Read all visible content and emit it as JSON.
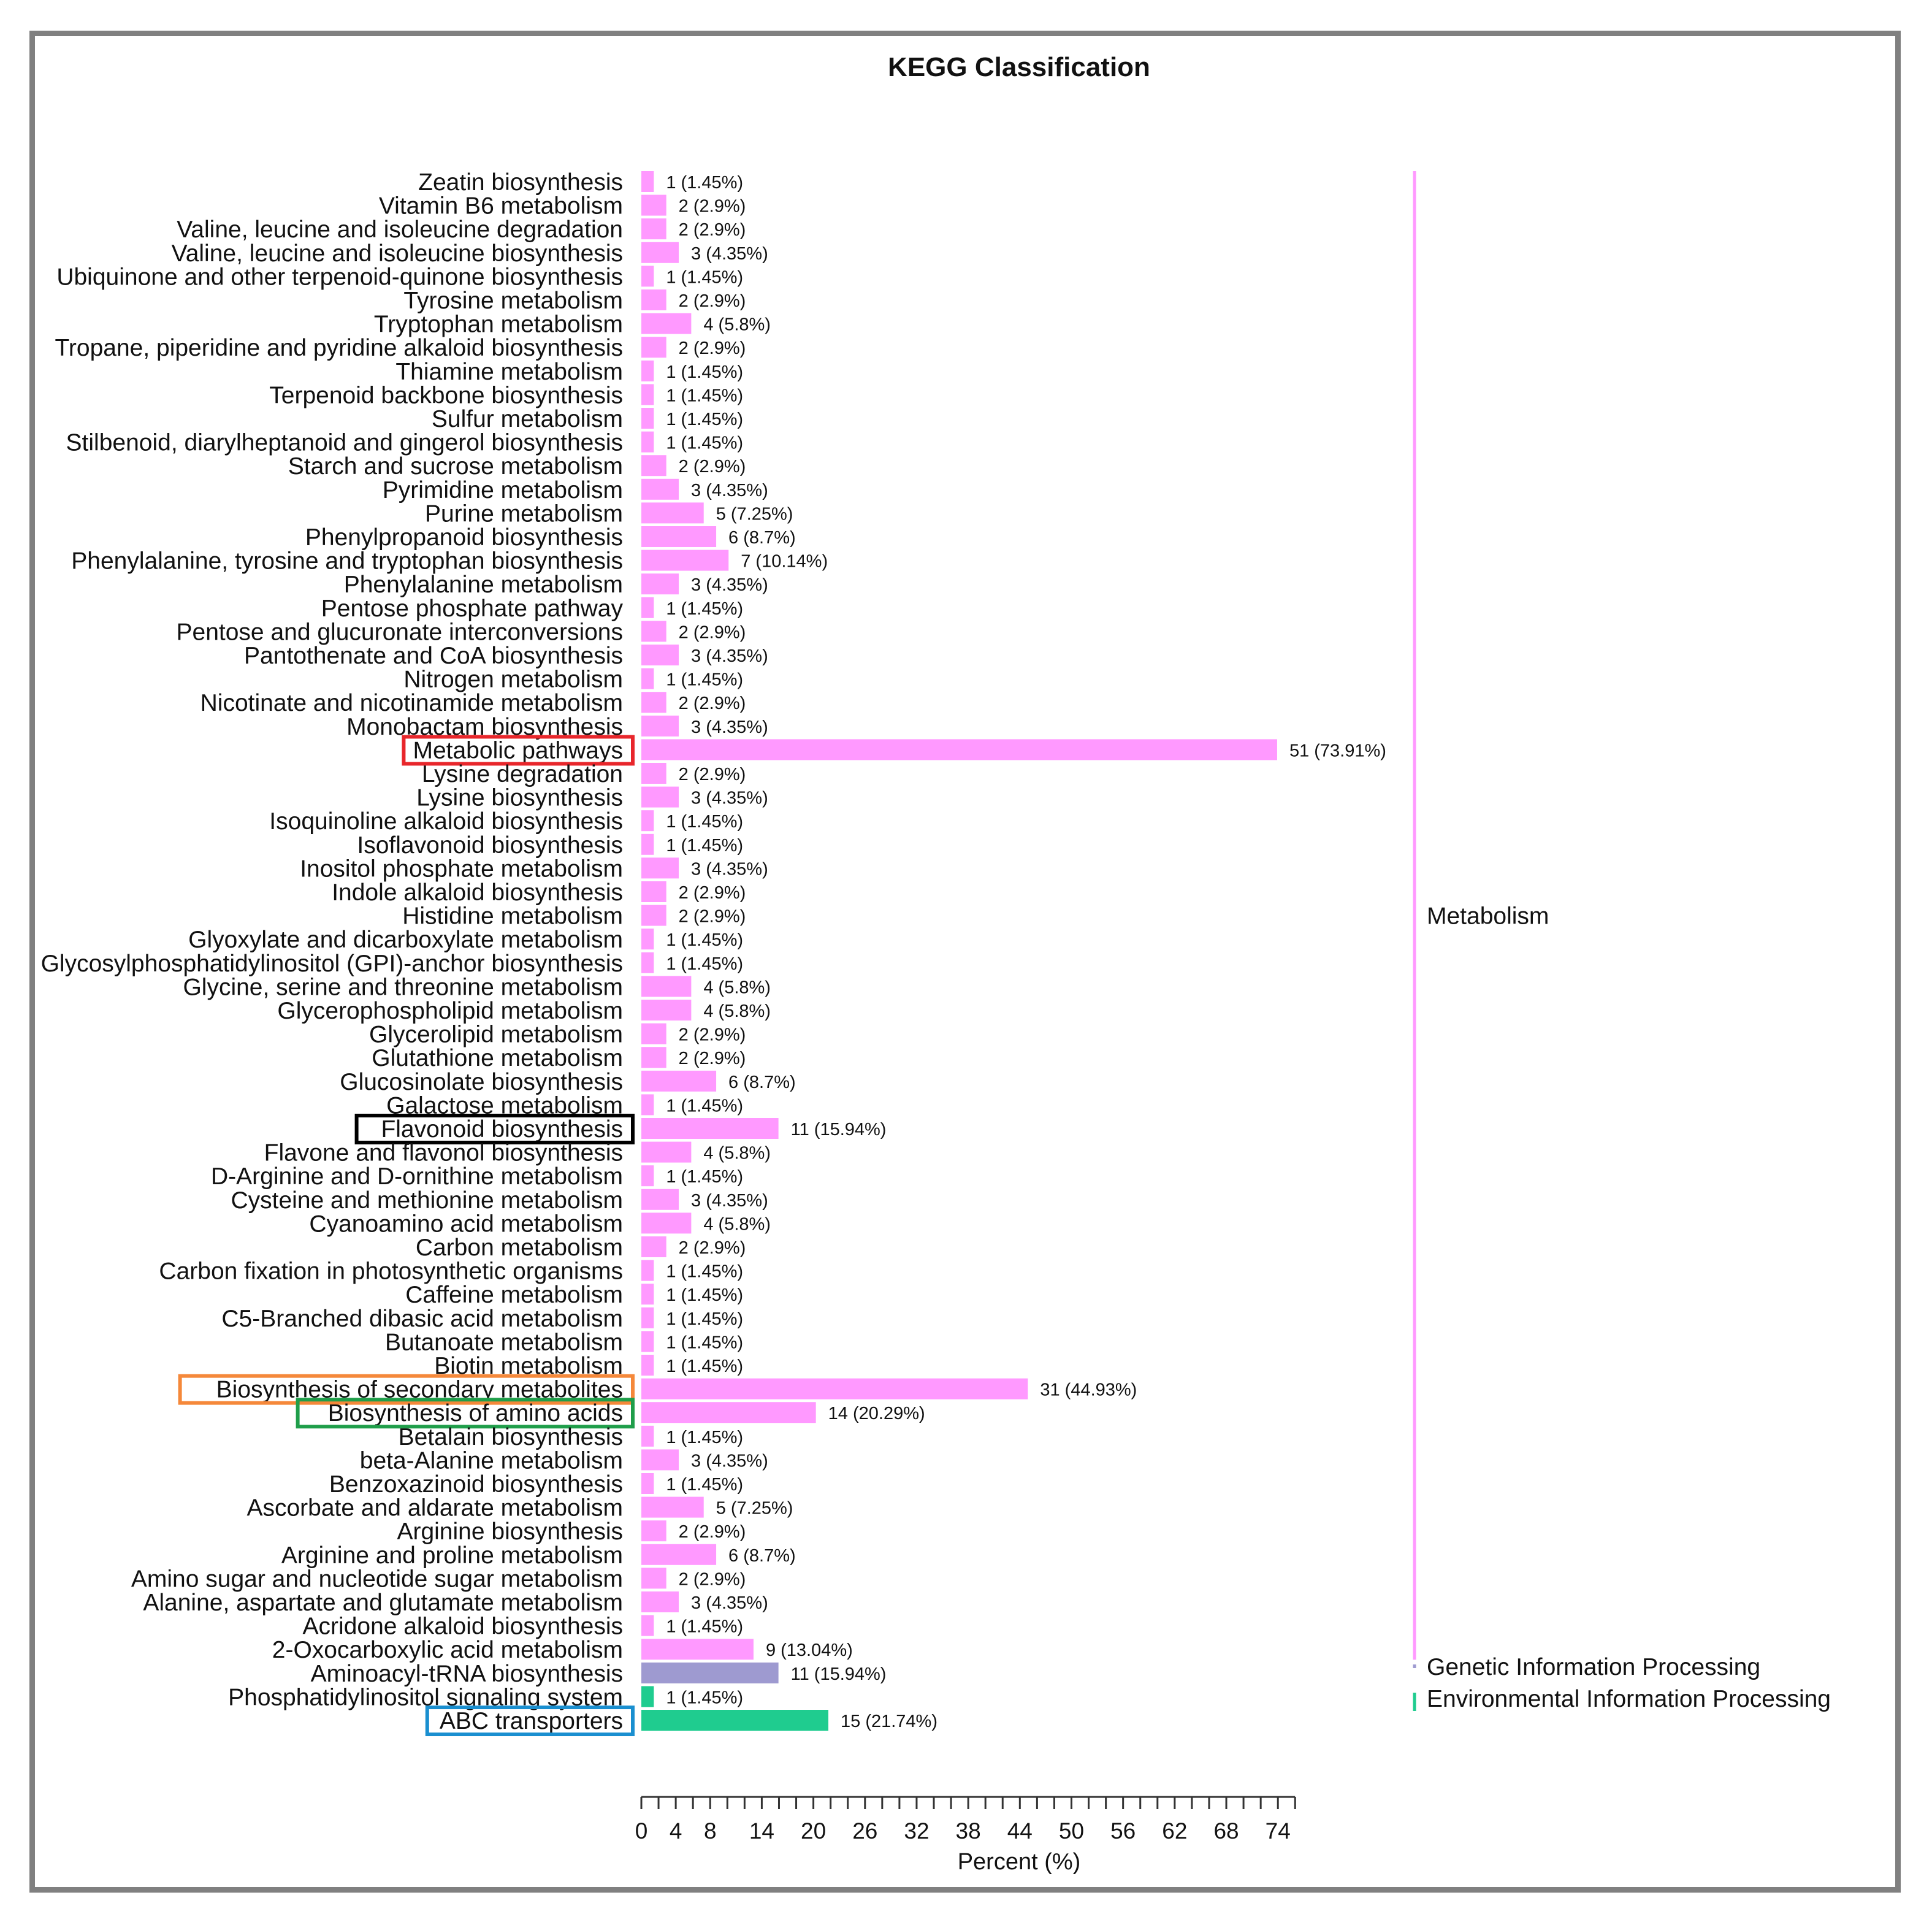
{
  "chart_data": {
    "type": "bar",
    "orientation": "horizontal",
    "title": "KEGG Classification",
    "xlabel": "Percent (%)",
    "ylabel": "",
    "xlim": [
      0,
      76
    ],
    "xticks": [
      0,
      4,
      8,
      14,
      20,
      26,
      32,
      38,
      44,
      50,
      56,
      62,
      68,
      74
    ],
    "grid": false,
    "categories": [
      {
        "label": "Zeatin biosynthesis",
        "count": 1,
        "percent": 1.45,
        "value_label": "1 (1.45%)",
        "class": "Metabolism"
      },
      {
        "label": "Vitamin B6 metabolism",
        "count": 2,
        "percent": 2.9,
        "value_label": "2 (2.9%)",
        "class": "Metabolism"
      },
      {
        "label": "Valine, leucine and isoleucine degradation",
        "count": 2,
        "percent": 2.9,
        "value_label": "2 (2.9%)",
        "class": "Metabolism"
      },
      {
        "label": "Valine, leucine and isoleucine biosynthesis",
        "count": 3,
        "percent": 4.35,
        "value_label": "3 (4.35%)",
        "class": "Metabolism"
      },
      {
        "label": "Ubiquinone and other terpenoid-quinone biosynthesis",
        "count": 1,
        "percent": 1.45,
        "value_label": "1 (1.45%)",
        "class": "Metabolism"
      },
      {
        "label": "Tyrosine metabolism",
        "count": 2,
        "percent": 2.9,
        "value_label": "2 (2.9%)",
        "class": "Metabolism"
      },
      {
        "label": "Tryptophan metabolism",
        "count": 4,
        "percent": 5.8,
        "value_label": "4 (5.8%)",
        "class": "Metabolism"
      },
      {
        "label": "Tropane, piperidine and pyridine alkaloid biosynthesis",
        "count": 2,
        "percent": 2.9,
        "value_label": "2 (2.9%)",
        "class": "Metabolism"
      },
      {
        "label": "Thiamine metabolism",
        "count": 1,
        "percent": 1.45,
        "value_label": "1 (1.45%)",
        "class": "Metabolism"
      },
      {
        "label": "Terpenoid backbone biosynthesis",
        "count": 1,
        "percent": 1.45,
        "value_label": "1 (1.45%)",
        "class": "Metabolism"
      },
      {
        "label": "Sulfur metabolism",
        "count": 1,
        "percent": 1.45,
        "value_label": "1 (1.45%)",
        "class": "Metabolism"
      },
      {
        "label": "Stilbenoid, diarylheptanoid and gingerol biosynthesis",
        "count": 1,
        "percent": 1.45,
        "value_label": "1 (1.45%)",
        "class": "Metabolism"
      },
      {
        "label": "Starch and sucrose metabolism",
        "count": 2,
        "percent": 2.9,
        "value_label": "2 (2.9%)",
        "class": "Metabolism"
      },
      {
        "label": "Pyrimidine metabolism",
        "count": 3,
        "percent": 4.35,
        "value_label": "3 (4.35%)",
        "class": "Metabolism"
      },
      {
        "label": "Purine metabolism",
        "count": 5,
        "percent": 7.25,
        "value_label": "5 (7.25%)",
        "class": "Metabolism"
      },
      {
        "label": "Phenylpropanoid biosynthesis",
        "count": 6,
        "percent": 8.7,
        "value_label": "6 (8.7%)",
        "class": "Metabolism"
      },
      {
        "label": "Phenylalanine, tyrosine and tryptophan biosynthesis",
        "count": 7,
        "percent": 10.14,
        "value_label": "7 (10.14%)",
        "class": "Metabolism"
      },
      {
        "label": "Phenylalanine metabolism",
        "count": 3,
        "percent": 4.35,
        "value_label": "3 (4.35%)",
        "class": "Metabolism"
      },
      {
        "label": "Pentose phosphate pathway",
        "count": 1,
        "percent": 1.45,
        "value_label": "1 (1.45%)",
        "class": "Metabolism"
      },
      {
        "label": "Pentose and glucuronate interconversions",
        "count": 2,
        "percent": 2.9,
        "value_label": "2 (2.9%)",
        "class": "Metabolism"
      },
      {
        "label": "Pantothenate and CoA biosynthesis",
        "count": 3,
        "percent": 4.35,
        "value_label": "3 (4.35%)",
        "class": "Metabolism"
      },
      {
        "label": "Nitrogen metabolism",
        "count": 1,
        "percent": 1.45,
        "value_label": "1 (1.45%)",
        "class": "Metabolism"
      },
      {
        "label": "Nicotinate and nicotinamide metabolism",
        "count": 2,
        "percent": 2.9,
        "value_label": "2 (2.9%)",
        "class": "Metabolism"
      },
      {
        "label": "Monobactam biosynthesis",
        "count": 3,
        "percent": 4.35,
        "value_label": "3 (4.35%)",
        "class": "Metabolism"
      },
      {
        "label": "Metabolic pathways",
        "count": 51,
        "percent": 73.91,
        "value_label": "51 (73.91%)",
        "class": "Metabolism",
        "highlight": "#e8262b"
      },
      {
        "label": "Lysine degradation",
        "count": 2,
        "percent": 2.9,
        "value_label": "2 (2.9%)",
        "class": "Metabolism"
      },
      {
        "label": "Lysine biosynthesis",
        "count": 3,
        "percent": 4.35,
        "value_label": "3 (4.35%)",
        "class": "Metabolism"
      },
      {
        "label": "Isoquinoline alkaloid biosynthesis",
        "count": 1,
        "percent": 1.45,
        "value_label": "1 (1.45%)",
        "class": "Metabolism"
      },
      {
        "label": "Isoflavonoid biosynthesis",
        "count": 1,
        "percent": 1.45,
        "value_label": "1 (1.45%)",
        "class": "Metabolism"
      },
      {
        "label": "Inositol phosphate metabolism",
        "count": 3,
        "percent": 4.35,
        "value_label": "3 (4.35%)",
        "class": "Metabolism"
      },
      {
        "label": "Indole alkaloid biosynthesis",
        "count": 2,
        "percent": 2.9,
        "value_label": "2 (2.9%)",
        "class": "Metabolism"
      },
      {
        "label": "Histidine metabolism",
        "count": 2,
        "percent": 2.9,
        "value_label": "2 (2.9%)",
        "class": "Metabolism"
      },
      {
        "label": "Glyoxylate and dicarboxylate metabolism",
        "count": 1,
        "percent": 1.45,
        "value_label": "1 (1.45%)",
        "class": "Metabolism"
      },
      {
        "label": "Glycosylphosphatidylinositol (GPI)-anchor biosynthesis",
        "count": 1,
        "percent": 1.45,
        "value_label": "1 (1.45%)",
        "class": "Metabolism"
      },
      {
        "label": "Glycine, serine and threonine metabolism",
        "count": 4,
        "percent": 5.8,
        "value_label": "4 (5.8%)",
        "class": "Metabolism"
      },
      {
        "label": "Glycerophospholipid metabolism",
        "count": 4,
        "percent": 5.8,
        "value_label": "4 (5.8%)",
        "class": "Metabolism"
      },
      {
        "label": "Glycerolipid metabolism",
        "count": 2,
        "percent": 2.9,
        "value_label": "2 (2.9%)",
        "class": "Metabolism"
      },
      {
        "label": "Glutathione metabolism",
        "count": 2,
        "percent": 2.9,
        "value_label": "2 (2.9%)",
        "class": "Metabolism"
      },
      {
        "label": "Glucosinolate biosynthesis",
        "count": 6,
        "percent": 8.7,
        "value_label": "6 (8.7%)",
        "class": "Metabolism"
      },
      {
        "label": "Galactose metabolism",
        "count": 1,
        "percent": 1.45,
        "value_label": "1 (1.45%)",
        "class": "Metabolism"
      },
      {
        "label": "Flavonoid biosynthesis",
        "count": 11,
        "percent": 15.94,
        "value_label": "11 (15.94%)",
        "class": "Metabolism",
        "highlight": "#000000"
      },
      {
        "label": "Flavone and flavonol biosynthesis",
        "count": 4,
        "percent": 5.8,
        "value_label": "4 (5.8%)",
        "class": "Metabolism"
      },
      {
        "label": "D-Arginine and D-ornithine metabolism",
        "count": 1,
        "percent": 1.45,
        "value_label": "1 (1.45%)",
        "class": "Metabolism"
      },
      {
        "label": "Cysteine and methionine metabolism",
        "count": 3,
        "percent": 4.35,
        "value_label": "3 (4.35%)",
        "class": "Metabolism"
      },
      {
        "label": "Cyanoamino acid metabolism",
        "count": 4,
        "percent": 5.8,
        "value_label": "4 (5.8%)",
        "class": "Metabolism"
      },
      {
        "label": "Carbon metabolism",
        "count": 2,
        "percent": 2.9,
        "value_label": "2 (2.9%)",
        "class": "Metabolism"
      },
      {
        "label": "Carbon fixation in photosynthetic organisms",
        "count": 1,
        "percent": 1.45,
        "value_label": "1 (1.45%)",
        "class": "Metabolism"
      },
      {
        "label": "Caffeine metabolism",
        "count": 1,
        "percent": 1.45,
        "value_label": "1 (1.45%)",
        "class": "Metabolism"
      },
      {
        "label": "C5-Branched dibasic acid metabolism",
        "count": 1,
        "percent": 1.45,
        "value_label": "1 (1.45%)",
        "class": "Metabolism"
      },
      {
        "label": "Butanoate metabolism",
        "count": 1,
        "percent": 1.45,
        "value_label": "1 (1.45%)",
        "class": "Metabolism"
      },
      {
        "label": "Biotin metabolism",
        "count": 1,
        "percent": 1.45,
        "value_label": "1 (1.45%)",
        "class": "Metabolism"
      },
      {
        "label": "Biosynthesis of secondary metabolites",
        "count": 31,
        "percent": 44.93,
        "value_label": "31 (44.93%)",
        "class": "Metabolism",
        "highlight": "#f5883a"
      },
      {
        "label": "Biosynthesis of amino acids",
        "count": 14,
        "percent": 20.29,
        "value_label": "14 (20.29%)",
        "class": "Metabolism",
        "highlight": "#1f9e4a"
      },
      {
        "label": "Betalain biosynthesis",
        "count": 1,
        "percent": 1.45,
        "value_label": "1 (1.45%)",
        "class": "Metabolism"
      },
      {
        "label": "beta-Alanine metabolism",
        "count": 3,
        "percent": 4.35,
        "value_label": "3 (4.35%)",
        "class": "Metabolism"
      },
      {
        "label": "Benzoxazinoid biosynthesis",
        "count": 1,
        "percent": 1.45,
        "value_label": "1 (1.45%)",
        "class": "Metabolism"
      },
      {
        "label": "Ascorbate and aldarate metabolism",
        "count": 5,
        "percent": 7.25,
        "value_label": "5 (7.25%)",
        "class": "Metabolism"
      },
      {
        "label": "Arginine biosynthesis",
        "count": 2,
        "percent": 2.9,
        "value_label": "2 (2.9%)",
        "class": "Metabolism"
      },
      {
        "label": "Arginine and proline metabolism",
        "count": 6,
        "percent": 8.7,
        "value_label": "6 (8.7%)",
        "class": "Metabolism"
      },
      {
        "label": "Amino sugar and nucleotide sugar metabolism",
        "count": 2,
        "percent": 2.9,
        "value_label": "2 (2.9%)",
        "class": "Metabolism"
      },
      {
        "label": "Alanine, aspartate and glutamate metabolism",
        "count": 3,
        "percent": 4.35,
        "value_label": "3 (4.35%)",
        "class": "Metabolism"
      },
      {
        "label": "Acridone alkaloid biosynthesis",
        "count": 1,
        "percent": 1.45,
        "value_label": "1 (1.45%)",
        "class": "Metabolism"
      },
      {
        "label": "2-Oxocarboxylic acid metabolism",
        "count": 9,
        "percent": 13.04,
        "value_label": "9 (13.04%)",
        "class": "Metabolism"
      },
      {
        "label": "Aminoacyl-tRNA biosynthesis",
        "count": 11,
        "percent": 15.94,
        "value_label": "11 (15.94%)",
        "class": "Genetic Information Processing"
      },
      {
        "label": "Phosphatidylinositol signaling system",
        "count": 1,
        "percent": 1.45,
        "value_label": "1 (1.45%)",
        "class": "Environmental Information Processing"
      },
      {
        "label": "ABC transporters",
        "count": 15,
        "percent": 21.74,
        "value_label": "15 (21.74%)",
        "class": "Environmental Information Processing",
        "highlight": "#1a8fd0"
      }
    ],
    "classes": [
      {
        "name": "Metabolism",
        "color": "#ff99ff"
      },
      {
        "name": "Genetic Information Processing",
        "color": "#9e9ad0"
      },
      {
        "name": "Environmental Information Processing",
        "color": "#1fcc8f"
      }
    ],
    "legend_placement": "right"
  }
}
